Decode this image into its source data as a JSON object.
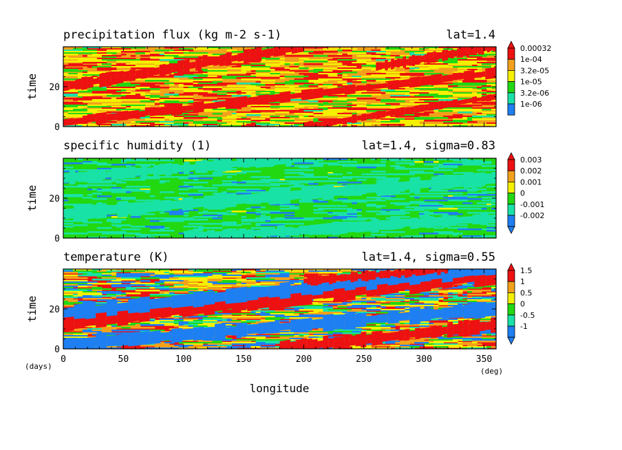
{
  "colors": {
    "red": "#ee1111",
    "orange": "#f3a11a",
    "yellow": "#f4f000",
    "green": "#22d811",
    "cyan": "#19e2a7",
    "blue": "#1e7ff2"
  },
  "chart_data": [
    {
      "type": "heatmap",
      "title": "precipitation flux (kg m-2 s-1)",
      "location": "lat=1.4",
      "xlabel": "",
      "ylabel": "time",
      "xlim": [
        0,
        360
      ],
      "ylim": [
        0,
        40
      ],
      "xticks": [
        0,
        50,
        100,
        150,
        200,
        250,
        300,
        350
      ],
      "yticks": [
        0,
        20
      ],
      "show_x_tick_labels": false,
      "colorbar": {
        "labels": [
          "0.00032",
          "1e-04",
          "3.2e-05",
          "1e-05",
          "3.2e-06",
          "1e-06"
        ],
        "colors": [
          "red",
          "orange",
          "yellow",
          "green",
          "cyan",
          "blue"
        ],
        "extend": "max"
      },
      "field": {
        "base_weights": [
          0.2,
          0.32,
          0.3,
          0.15,
          0.03
        ],
        "streak_color": "red",
        "streaks": [
          {
            "x0": 0,
            "t0": 2,
            "x1": 360,
            "t1": 27,
            "width": 2.0
          },
          {
            "x0": 0,
            "t0": 20,
            "x1": 200,
            "t1": 40,
            "width": 2.5
          },
          {
            "x0": 200,
            "t0": 0,
            "x1": 360,
            "t1": 15,
            "width": 1.5
          },
          {
            "x0": 260,
            "t0": 30,
            "x1": 360,
            "t1": 40,
            "width": 2.0
          }
        ]
      }
    },
    {
      "type": "heatmap",
      "title": "specific humidity (1)",
      "location": "lat=1.4, sigma=0.83",
      "xlabel": "",
      "ylabel": "time",
      "xlim": [
        0,
        360
      ],
      "ylim": [
        0,
        40
      ],
      "xticks": [
        0,
        50,
        100,
        150,
        200,
        250,
        300,
        350
      ],
      "yticks": [
        0,
        20
      ],
      "show_x_tick_labels": false,
      "colorbar": {
        "labels": [
          "0.003",
          "0.002",
          "0.001",
          "0",
          "-0.001",
          "-0.002"
        ],
        "colors": [
          "red",
          "orange",
          "yellow",
          "green",
          "cyan",
          "blue"
        ],
        "extend": "both"
      },
      "field": {
        "base_weights": [
          0.0,
          0.0,
          0.01,
          0.62,
          0.31,
          0.06
        ],
        "streak_color": "cyan",
        "streaks": [
          {
            "x0": 0,
            "t0": 12,
            "x1": 360,
            "t1": 30,
            "width": 3.0
          },
          {
            "x0": 0,
            "t0": 30,
            "x1": 200,
            "t1": 40,
            "width": 2.5
          },
          {
            "x0": 100,
            "t0": 0,
            "x1": 360,
            "t1": 10,
            "width": 2.5
          }
        ]
      }
    },
    {
      "type": "heatmap",
      "title": "temperature (K)",
      "location": "lat=1.4, sigma=0.55",
      "xlabel": "longitude",
      "ylabel": "time",
      "xlim": [
        0,
        360
      ],
      "ylim": [
        0,
        40
      ],
      "xticks": [
        0,
        50,
        100,
        150,
        200,
        250,
        300,
        350
      ],
      "yticks": [
        0,
        20
      ],
      "show_x_tick_labels": true,
      "x_unit": "(deg)",
      "y_unit": "(days)",
      "colorbar": {
        "labels": [
          "1.5",
          "1",
          "0.5",
          "0",
          "-0.5",
          "-1"
        ],
        "colors": [
          "red",
          "orange",
          "yellow",
          "green",
          "cyan",
          "blue"
        ],
        "extend": "both"
      },
      "field": {
        "base_weights": [
          0.22,
          0.22,
          0.16,
          0.12,
          0.1,
          0.18
        ],
        "streaks": [
          {
            "x0": 0,
            "t0": 13,
            "x1": 360,
            "t1": 37,
            "width": 3.5,
            "color": "red"
          },
          {
            "x0": 0,
            "t0": 18,
            "x1": 360,
            "t1": 40,
            "width": 3.0,
            "color": "blue"
          },
          {
            "x0": 0,
            "t0": 2,
            "x1": 360,
            "t1": 20,
            "width": 3.0,
            "color": "blue"
          },
          {
            "x0": 180,
            "t0": 0,
            "x1": 360,
            "t1": 12,
            "width": 3.0,
            "color": "red"
          },
          {
            "x0": 200,
            "t0": 34,
            "x1": 320,
            "t1": 40,
            "width": 2.0,
            "color": "red"
          }
        ]
      }
    }
  ]
}
